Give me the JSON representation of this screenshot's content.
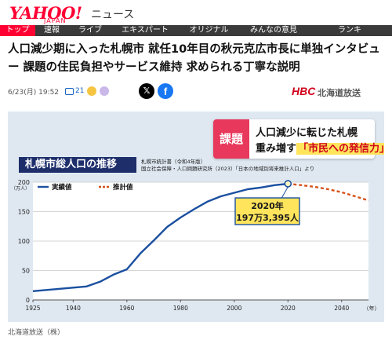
{
  "header": {
    "logo": "YAHOO!",
    "logo_sub": "JAPAN",
    "section": "ニュース"
  },
  "nav": {
    "items": [
      {
        "label": "トップ",
        "active": true
      },
      {
        "label": "速報",
        "active": false
      },
      {
        "label": "ライブ",
        "active": false
      },
      {
        "label": "エキスパート",
        "active": false
      },
      {
        "label": "オリジナル",
        "active": false
      },
      {
        "label": "みんなの意見",
        "active": false
      },
      {
        "label": "ランキ",
        "active": false
      }
    ]
  },
  "article": {
    "title": "人口減少期に入った札幌市 就任10年目の秋元克広市長に単独インタビュー 課題の住民負担やサービス維持 求められる丁寧な説明",
    "date": "6/23(月) 19:52",
    "comment_count": "21",
    "source_logo": "HBC",
    "source_name": "北海道放送",
    "caption": "北海道放送（株）"
  },
  "figure": {
    "issue_tag": "課題",
    "issue_line1": "人口減少に転じた札幌",
    "issue_line2_prefix": "重み増す",
    "issue_line2_highlight": "「市民への発信力」",
    "chart_title": "札幌市総人口の推移",
    "source_line1": "札幌市統計書（令和4年版）",
    "source_line2": "国立社会保障・人口問題研究所（2023）「日本の地域別将来推計人口」より"
  },
  "chart_data": {
    "type": "line",
    "ylabel": "（万人）",
    "xlabel": "（年）",
    "xlim": [
      1925,
      2050
    ],
    "ylim": [
      0,
      200
    ],
    "x_ticks": [
      1925,
      1940,
      1960,
      1980,
      2000,
      2020,
      2040
    ],
    "y_ticks": [
      0,
      50,
      100,
      150,
      200
    ],
    "legend": [
      "実績値",
      "推計値"
    ],
    "callout": {
      "year": "2020年",
      "value": "197万3,395人"
    },
    "series": [
      {
        "name": "実績値",
        "color": "#1a4fa0",
        "x": [
          1925,
          1930,
          1935,
          1940,
          1945,
          1950,
          1955,
          1960,
          1965,
          1970,
          1975,
          1980,
          1985,
          1990,
          1995,
          2000,
          2005,
          2010,
          2015,
          2020
        ],
        "y": [
          15,
          17,
          19,
          21,
          23,
          31,
          43,
          52,
          79,
          101,
          124,
          140,
          154,
          167,
          176,
          182,
          188,
          191,
          195,
          197.3
        ]
      },
      {
        "name": "推計値",
        "color": "#d6531c",
        "x": [
          2020,
          2025,
          2030,
          2035,
          2040,
          2045,
          2050
        ],
        "y": [
          197.3,
          195,
          192,
          188,
          183,
          176,
          169
        ]
      }
    ]
  }
}
